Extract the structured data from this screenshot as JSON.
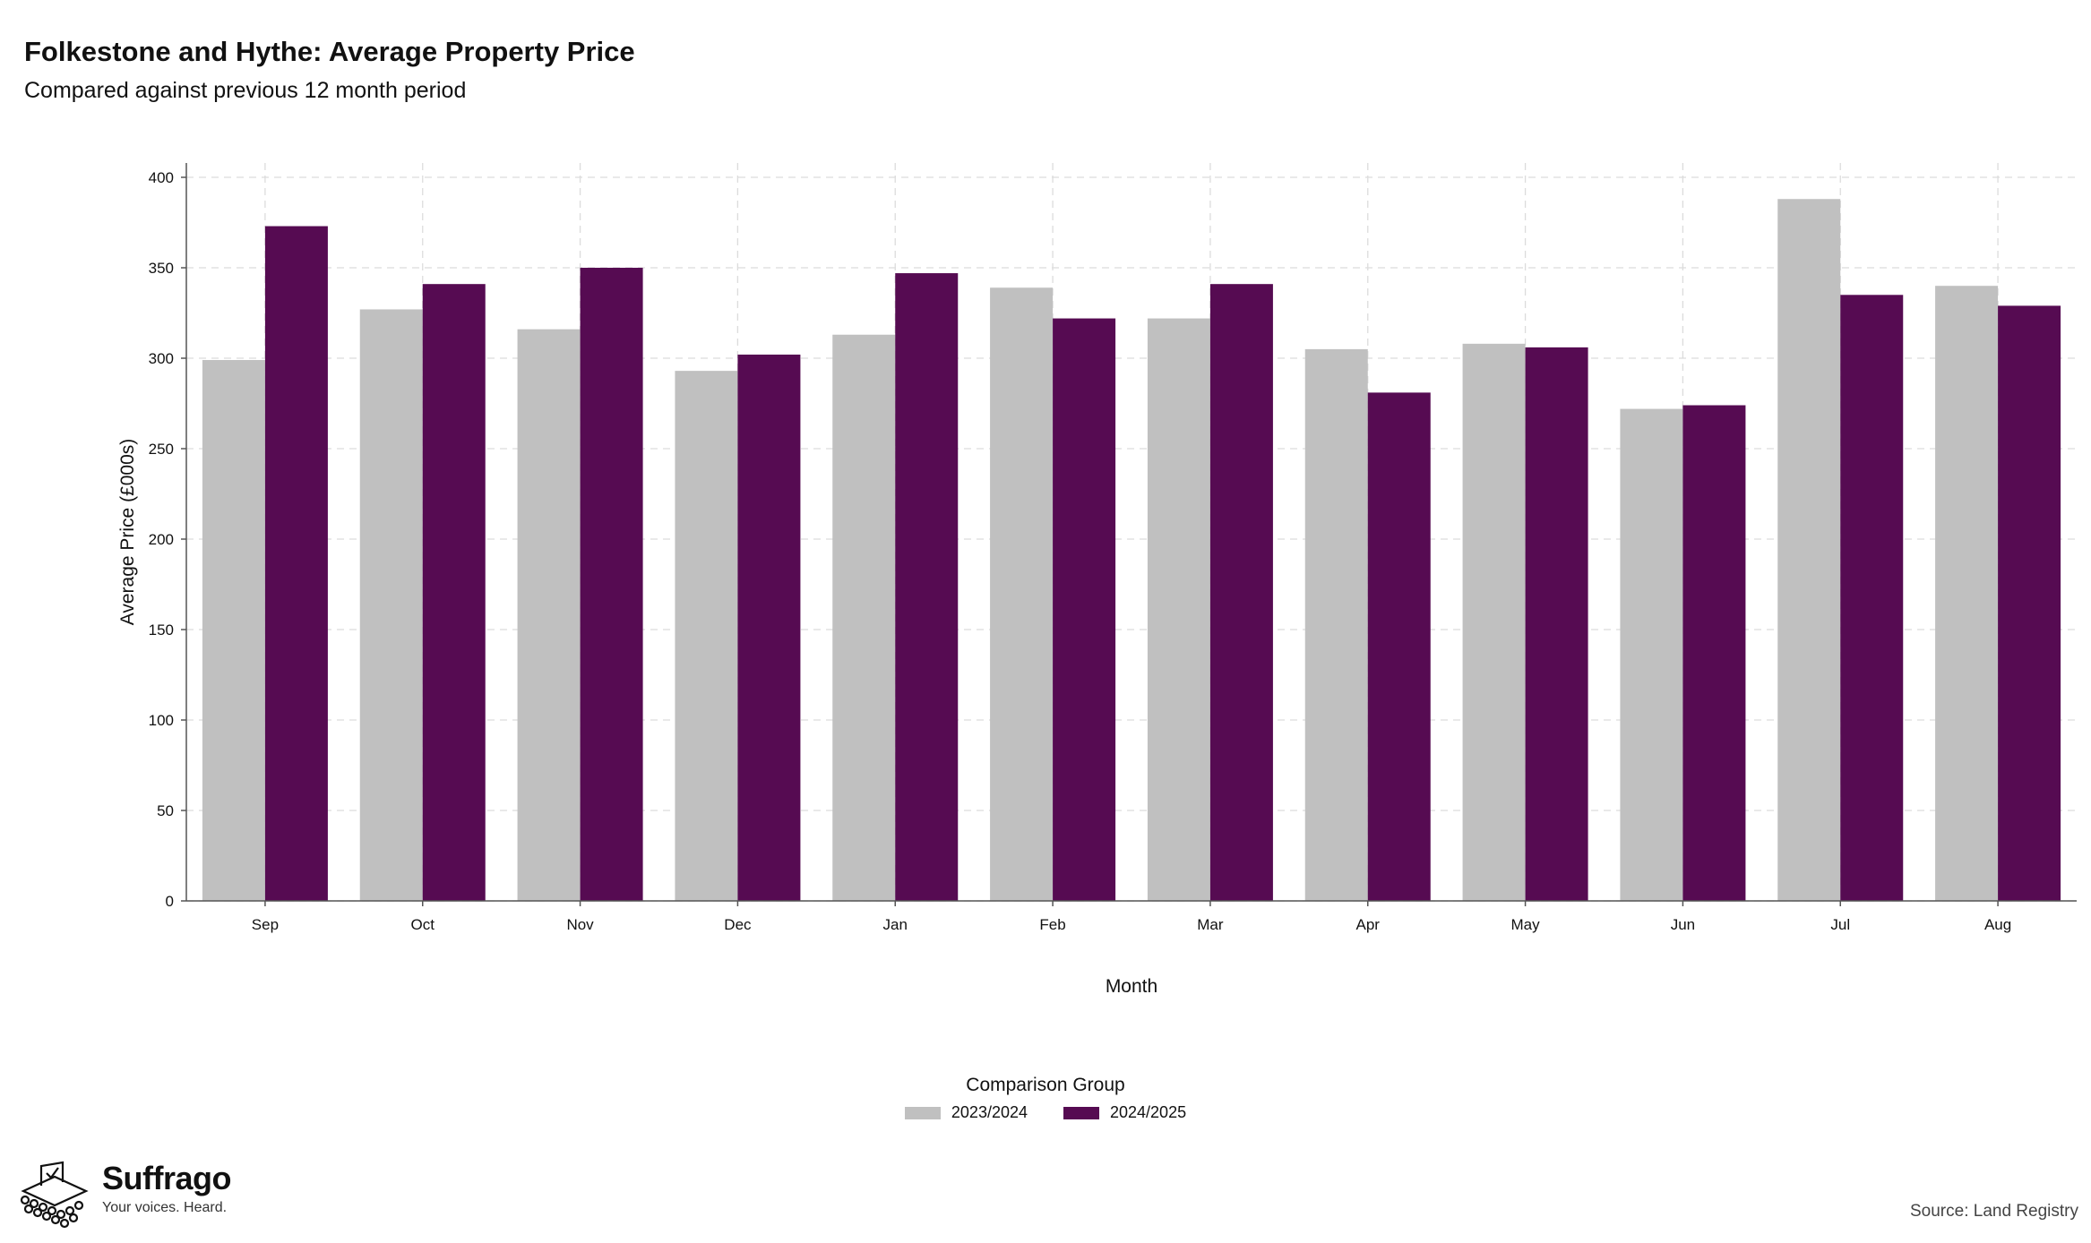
{
  "header": {
    "title": "Folkestone and Hythe: Average Property Price",
    "subtitle": "Compared against previous 12 month period"
  },
  "chart_data": {
    "type": "bar",
    "categories": [
      "Sep",
      "Oct",
      "Nov",
      "Dec",
      "Jan",
      "Feb",
      "Mar",
      "Apr",
      "May",
      "Jun",
      "Jul",
      "Aug"
    ],
    "series": [
      {
        "name": "2023/2024",
        "color": "#c0c0c0",
        "values": [
          299,
          327,
          316,
          293,
          313,
          339,
          322,
          305,
          308,
          272,
          388,
          340
        ]
      },
      {
        "name": "2024/2025",
        "color": "#560b52",
        "values": [
          373,
          341,
          350,
          302,
          347,
          322,
          341,
          281,
          306,
          274,
          335,
          329
        ]
      }
    ],
    "xlabel": "Month",
    "ylabel": "Average Price (£000s)",
    "ylim": [
      0,
      400
    ],
    "yticks": [
      0,
      50,
      100,
      150,
      200,
      250,
      300,
      350,
      400
    ],
    "grid": true,
    "legend_position": "bottom"
  },
  "legend": {
    "title": "Comparison Group",
    "items": [
      {
        "label": "2023/2024",
        "color": "#c0c0c0"
      },
      {
        "label": "2024/2025",
        "color": "#560b52"
      }
    ]
  },
  "branding": {
    "name": "Suffrago",
    "tagline": "Your voices. Heard.",
    "logo_icon": "ballot-box-icon"
  },
  "footer": {
    "source": "Source: Land Registry"
  }
}
